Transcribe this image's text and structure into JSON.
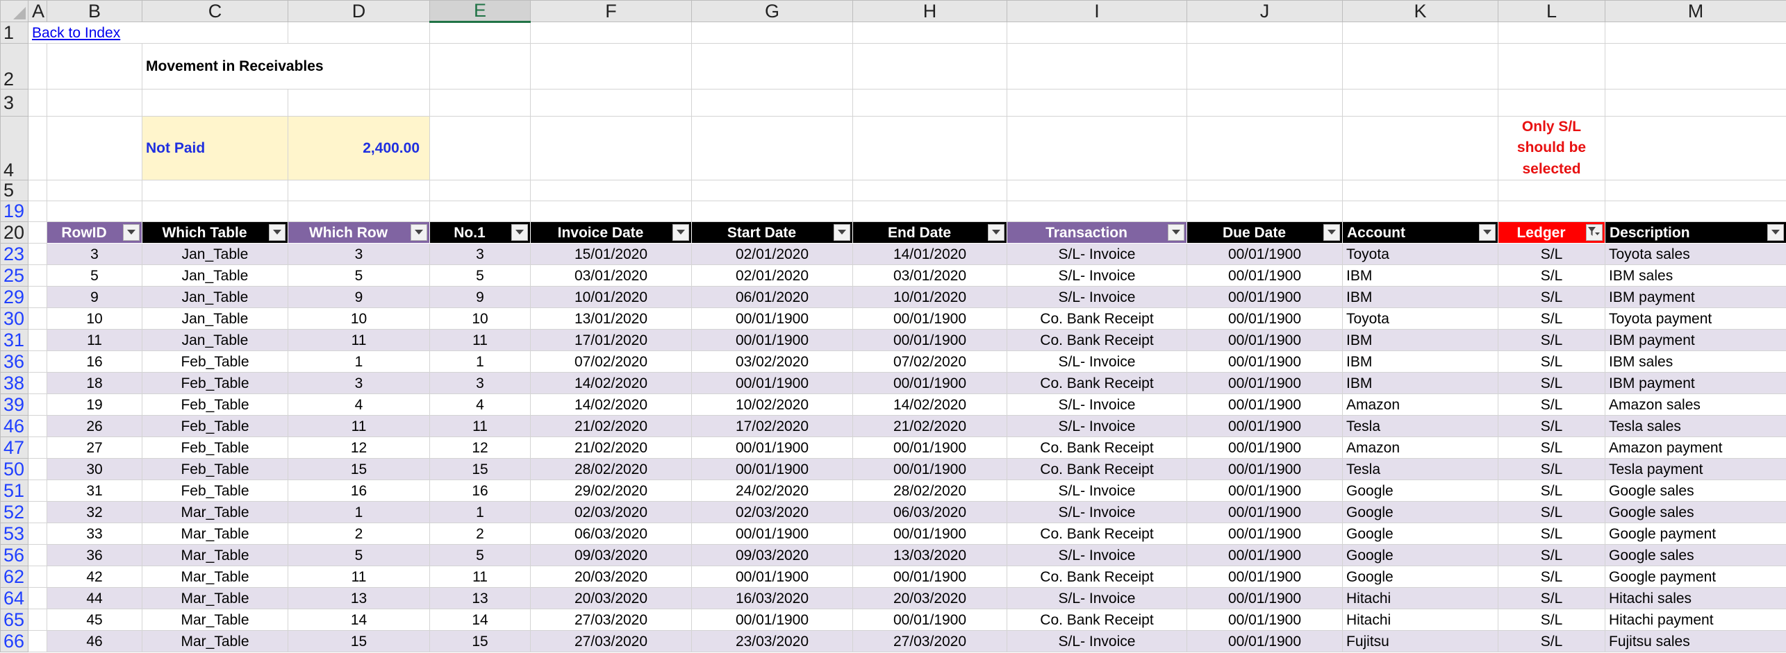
{
  "sheet": {
    "columns": [
      "A",
      "B",
      "C",
      "D",
      "E",
      "F",
      "G",
      "H",
      "I",
      "J",
      "K",
      "L",
      "M"
    ],
    "selected_column": "E"
  },
  "row_labels": {
    "r1": "1",
    "r2": "2",
    "r3": "3",
    "r4": "4",
    "r5": "5",
    "r19": "19",
    "r20": "20"
  },
  "links": {
    "back_to_index": "Back to Index"
  },
  "report": {
    "title": "Movement in Receivables",
    "not_paid_label": "Not Paid",
    "not_paid_value": "2,400.00",
    "note": "Only S/L should be selected"
  },
  "table": {
    "headers": [
      "RowID",
      "Which Table",
      "Which Row",
      "No.1",
      "Invoice Date",
      "Start Date",
      "End Date",
      "Transaction",
      "Due Date",
      "Account",
      "Ledger",
      "Description"
    ],
    "filtered_column": "Ledger",
    "colors": {
      "purple": "#8064a2",
      "black": "#000000",
      "red": "#ff0000",
      "band": "#e4dfec",
      "filtered_row_number": "#1f3fff"
    },
    "rows": [
      {
        "row": "23",
        "cells": [
          "3",
          "Jan_Table",
          "3",
          "3",
          "15/01/2020",
          "02/01/2020",
          "14/01/2020",
          "S/L- Invoice",
          "00/01/1900",
          "Toyota",
          "S/L",
          "Toyota sales"
        ]
      },
      {
        "row": "25",
        "cells": [
          "5",
          "Jan_Table",
          "5",
          "5",
          "03/01/2020",
          "02/01/2020",
          "03/01/2020",
          "S/L- Invoice",
          "00/01/1900",
          "IBM",
          "S/L",
          "IBM sales"
        ]
      },
      {
        "row": "29",
        "cells": [
          "9",
          "Jan_Table",
          "9",
          "9",
          "10/01/2020",
          "06/01/2020",
          "10/01/2020",
          "S/L- Invoice",
          "00/01/1900",
          "IBM",
          "S/L",
          "IBM payment"
        ]
      },
      {
        "row": "30",
        "cells": [
          "10",
          "Jan_Table",
          "10",
          "10",
          "13/01/2020",
          "00/01/1900",
          "00/01/1900",
          "Co. Bank Receipt",
          "00/01/1900",
          "Toyota",
          "S/L",
          "Toyota payment"
        ]
      },
      {
        "row": "31",
        "cells": [
          "11",
          "Jan_Table",
          "11",
          "11",
          "17/01/2020",
          "00/01/1900",
          "00/01/1900",
          "Co. Bank Receipt",
          "00/01/1900",
          "IBM",
          "S/L",
          "IBM payment"
        ]
      },
      {
        "row": "36",
        "cells": [
          "16",
          "Feb_Table",
          "1",
          "1",
          "07/02/2020",
          "03/02/2020",
          "07/02/2020",
          "S/L- Invoice",
          "00/01/1900",
          "IBM",
          "S/L",
          "IBM sales"
        ]
      },
      {
        "row": "38",
        "cells": [
          "18",
          "Feb_Table",
          "3",
          "3",
          "14/02/2020",
          "00/01/1900",
          "00/01/1900",
          "Co. Bank Receipt",
          "00/01/1900",
          "IBM",
          "S/L",
          "IBM payment"
        ]
      },
      {
        "row": "39",
        "cells": [
          "19",
          "Feb_Table",
          "4",
          "4",
          "14/02/2020",
          "10/02/2020",
          "14/02/2020",
          "S/L- Invoice",
          "00/01/1900",
          "Amazon",
          "S/L",
          "Amazon sales"
        ]
      },
      {
        "row": "46",
        "cells": [
          "26",
          "Feb_Table",
          "11",
          "11",
          "21/02/2020",
          "17/02/2020",
          "21/02/2020",
          "S/L- Invoice",
          "00/01/1900",
          "Tesla",
          "S/L",
          "Tesla sales"
        ]
      },
      {
        "row": "47",
        "cells": [
          "27",
          "Feb_Table",
          "12",
          "12",
          "21/02/2020",
          "00/01/1900",
          "00/01/1900",
          "Co. Bank Receipt",
          "00/01/1900",
          "Amazon",
          "S/L",
          "Amazon payment"
        ]
      },
      {
        "row": "50",
        "cells": [
          "30",
          "Feb_Table",
          "15",
          "15",
          "28/02/2020",
          "00/01/1900",
          "00/01/1900",
          "Co. Bank Receipt",
          "00/01/1900",
          "Tesla",
          "S/L",
          "Tesla payment"
        ]
      },
      {
        "row": "51",
        "cells": [
          "31",
          "Feb_Table",
          "16",
          "16",
          "29/02/2020",
          "24/02/2020",
          "28/02/2020",
          "S/L- Invoice",
          "00/01/1900",
          "Google",
          "S/L",
          "Google sales"
        ]
      },
      {
        "row": "52",
        "cells": [
          "32",
          "Mar_Table",
          "1",
          "1",
          "02/03/2020",
          "02/03/2020",
          "06/03/2020",
          "S/L- Invoice",
          "00/01/1900",
          "Google",
          "S/L",
          "Google sales"
        ]
      },
      {
        "row": "53",
        "cells": [
          "33",
          "Mar_Table",
          "2",
          "2",
          "06/03/2020",
          "00/01/1900",
          "00/01/1900",
          "Co. Bank Receipt",
          "00/01/1900",
          "Google",
          "S/L",
          "Google payment"
        ]
      },
      {
        "row": "56",
        "cells": [
          "36",
          "Mar_Table",
          "5",
          "5",
          "09/03/2020",
          "09/03/2020",
          "13/03/2020",
          "S/L- Invoice",
          "00/01/1900",
          "Google",
          "S/L",
          "Google sales"
        ]
      },
      {
        "row": "62",
        "cells": [
          "42",
          "Mar_Table",
          "11",
          "11",
          "20/03/2020",
          "00/01/1900",
          "00/01/1900",
          "Co. Bank Receipt",
          "00/01/1900",
          "Google",
          "S/L",
          "Google payment"
        ]
      },
      {
        "row": "64",
        "cells": [
          "44",
          "Mar_Table",
          "13",
          "13",
          "20/03/2020",
          "16/03/2020",
          "20/03/2020",
          "S/L- Invoice",
          "00/01/1900",
          "Hitachi",
          "S/L",
          "Hitachi sales"
        ]
      },
      {
        "row": "65",
        "cells": [
          "45",
          "Mar_Table",
          "14",
          "14",
          "27/03/2020",
          "00/01/1900",
          "00/01/1900",
          "Co. Bank Receipt",
          "00/01/1900",
          "Hitachi",
          "S/L",
          "Hitachi payment"
        ]
      },
      {
        "row": "66",
        "cells": [
          "46",
          "Mar_Table",
          "15",
          "15",
          "27/03/2020",
          "23/03/2020",
          "27/03/2020",
          "S/L- Invoice",
          "00/01/1900",
          "Fujitsu",
          "S/L",
          "Fujitsu sales"
        ]
      }
    ]
  }
}
